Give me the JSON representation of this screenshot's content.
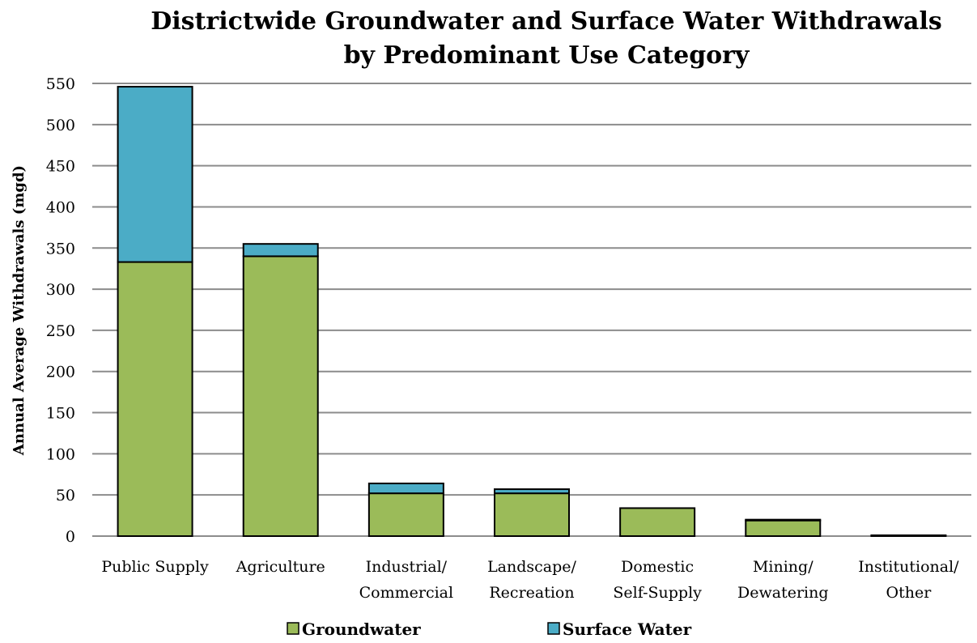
{
  "colors": {
    "groundwater": "#9bbb59",
    "surface": "#4bacc6",
    "grid": "#8c8c8c",
    "outline": "#000000"
  },
  "chart_data": {
    "type": "bar",
    "stacked": true,
    "title": [
      "Districtwide Groundwater and Surface Water Withdrawals",
      "by Predominant Use Category"
    ],
    "ylabel": "Annual Average Withdrawals (mgd)",
    "xlabel": "",
    "ylim": [
      0,
      550
    ],
    "yticks": [
      "0",
      "50",
      "100",
      "150",
      "200",
      "250",
      "300",
      "350",
      "400",
      "450",
      "500",
      "550"
    ],
    "grid": true,
    "legend_position": "bottom",
    "categories": [
      [
        "Public Supply"
      ],
      [
        "Agriculture"
      ],
      [
        "Industrial/",
        "Commercial"
      ],
      [
        "Landscape/",
        "Recreation"
      ],
      [
        "Domestic",
        "Self-Supply"
      ],
      [
        "Mining/",
        "Dewatering"
      ],
      [
        "Institutional/",
        "Other"
      ]
    ],
    "series": [
      {
        "name": "Groundwater",
        "color": "#9bbb59",
        "values": [
          333,
          340,
          52,
          52,
          34,
          19,
          1
        ]
      },
      {
        "name": "Surface Water",
        "color": "#4bacc6",
        "values": [
          213,
          15,
          12,
          5,
          0,
          1,
          0
        ]
      }
    ]
  }
}
